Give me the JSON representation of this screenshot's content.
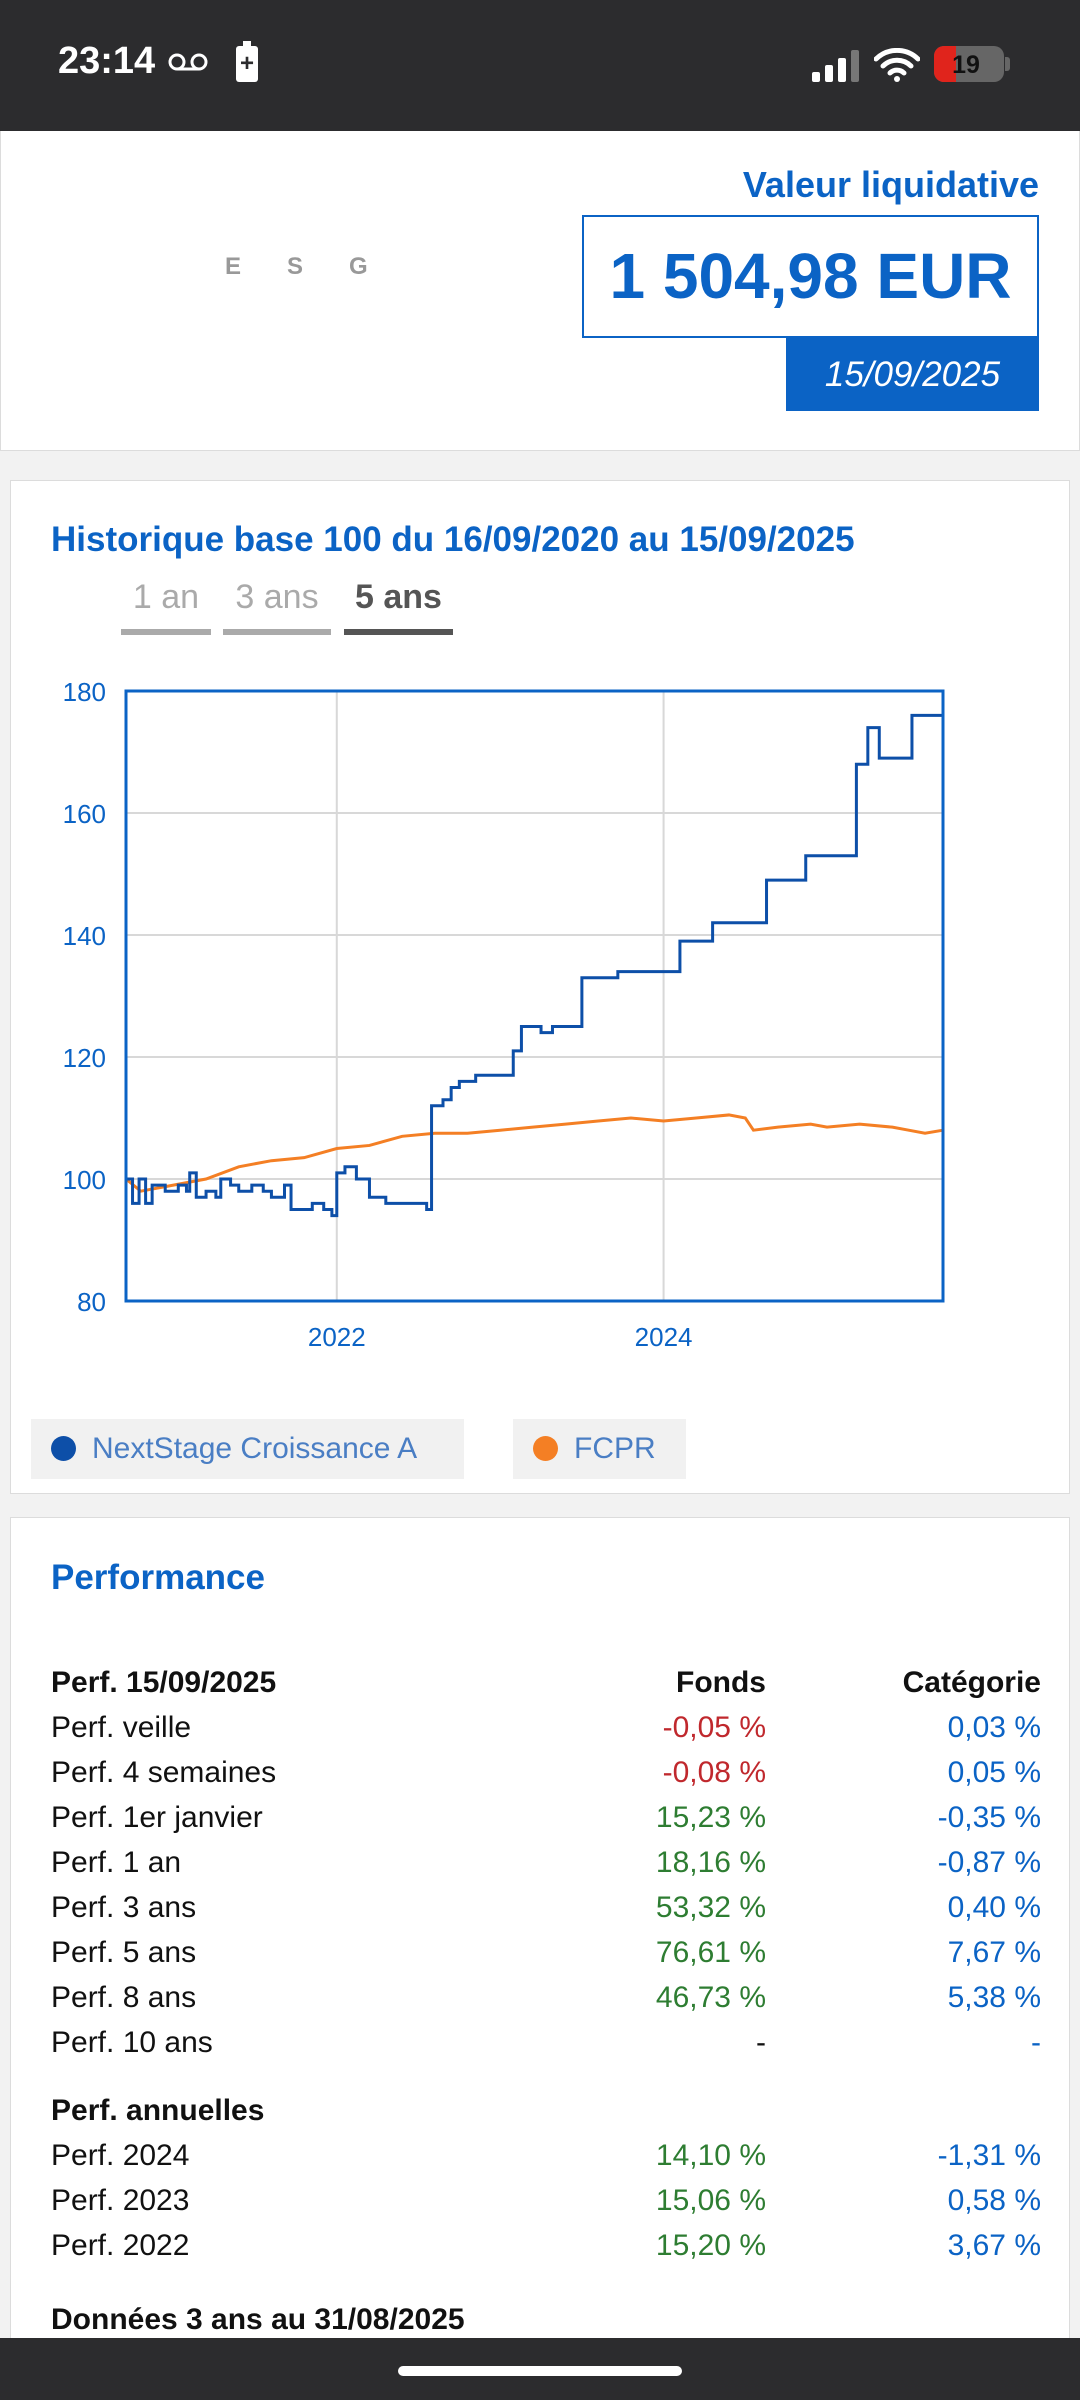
{
  "status_bar": {
    "time": "23:14",
    "battery": "19"
  },
  "esg_letters": [
    "E",
    "S",
    "G"
  ],
  "nav": {
    "label": "Valeur liquidative",
    "value": "1 504,98 EUR",
    "date": "15/09/2025"
  },
  "history": {
    "title": "Historique base 100 du 16/09/2020 au 15/09/2025",
    "tabs": [
      "1 an",
      "3 ans",
      "5 ans"
    ],
    "active_tab": "5 ans",
    "legend": [
      {
        "name": "NextStage Croissance A",
        "color": "#0d4fa8"
      },
      {
        "name": "FCPR",
        "color": "#f47f24"
      }
    ]
  },
  "chart_data": {
    "type": "line",
    "title": "Historique base 100 du 16/09/2020 au 15/09/2025",
    "xlabel": "",
    "ylabel": "",
    "xlim": [
      2020.71,
      2025.71
    ],
    "ylim": [
      80,
      180
    ],
    "x_ticks": [
      "2022",
      "2024"
    ],
    "x_tick_values": [
      2022,
      2024
    ],
    "y_ticks": [
      80,
      100,
      120,
      140,
      160,
      180
    ],
    "grid": true,
    "legend_position": "bottom",
    "series": [
      {
        "name": "NextStage Croissance A",
        "color": "#0d4fa8",
        "step": true,
        "points": [
          [
            2020.71,
            100
          ],
          [
            2020.75,
            96
          ],
          [
            2020.79,
            100
          ],
          [
            2020.83,
            96
          ],
          [
            2020.87,
            99
          ],
          [
            2020.95,
            98
          ],
          [
            2021.03,
            99
          ],
          [
            2021.08,
            98
          ],
          [
            2021.1,
            101
          ],
          [
            2021.14,
            97
          ],
          [
            2021.2,
            98
          ],
          [
            2021.26,
            97
          ],
          [
            2021.29,
            100
          ],
          [
            2021.35,
            99
          ],
          [
            2021.4,
            98
          ],
          [
            2021.48,
            99
          ],
          [
            2021.55,
            98
          ],
          [
            2021.6,
            97
          ],
          [
            2021.68,
            99
          ],
          [
            2021.72,
            95
          ],
          [
            2021.78,
            95
          ],
          [
            2021.85,
            96
          ],
          [
            2021.92,
            95
          ],
          [
            2021.97,
            94
          ],
          [
            2022.0,
            101
          ],
          [
            2022.05,
            102
          ],
          [
            2022.12,
            100
          ],
          [
            2022.2,
            97
          ],
          [
            2022.3,
            96
          ],
          [
            2022.45,
            96
          ],
          [
            2022.55,
            95
          ],
          [
            2022.58,
            112
          ],
          [
            2022.65,
            113
          ],
          [
            2022.7,
            115
          ],
          [
            2022.75,
            116
          ],
          [
            2022.85,
            117
          ],
          [
            2023.0,
            117
          ],
          [
            2023.08,
            121
          ],
          [
            2023.13,
            125
          ],
          [
            2023.25,
            124
          ],
          [
            2023.32,
            125
          ],
          [
            2023.45,
            125
          ],
          [
            2023.5,
            133
          ],
          [
            2023.72,
            134
          ],
          [
            2023.92,
            134
          ],
          [
            2024.1,
            139
          ],
          [
            2024.3,
            142
          ],
          [
            2024.6,
            142
          ],
          [
            2024.63,
            149
          ],
          [
            2024.85,
            149
          ],
          [
            2024.87,
            153
          ],
          [
            2025.15,
            153
          ],
          [
            2025.18,
            168
          ],
          [
            2025.25,
            174
          ],
          [
            2025.32,
            169
          ],
          [
            2025.5,
            169
          ],
          [
            2025.52,
            176
          ],
          [
            2025.71,
            176
          ]
        ]
      },
      {
        "name": "FCPR",
        "color": "#f47f24",
        "step": false,
        "points": [
          [
            2020.71,
            100
          ],
          [
            2020.8,
            98
          ],
          [
            2021.0,
            99
          ],
          [
            2021.2,
            100
          ],
          [
            2021.4,
            102
          ],
          [
            2021.6,
            103
          ],
          [
            2021.8,
            103.5
          ],
          [
            2022.0,
            105
          ],
          [
            2022.2,
            105.5
          ],
          [
            2022.4,
            107
          ],
          [
            2022.6,
            107.5
          ],
          [
            2022.8,
            107.5
          ],
          [
            2023.0,
            108
          ],
          [
            2023.2,
            108.5
          ],
          [
            2023.4,
            109
          ],
          [
            2023.6,
            109.5
          ],
          [
            2023.8,
            110
          ],
          [
            2024.0,
            109.5
          ],
          [
            2024.2,
            110
          ],
          [
            2024.4,
            110.5
          ],
          [
            2024.5,
            110
          ],
          [
            2024.55,
            108
          ],
          [
            2024.7,
            108.5
          ],
          [
            2024.9,
            109
          ],
          [
            2025.0,
            108.5
          ],
          [
            2025.2,
            109
          ],
          [
            2025.4,
            108.5
          ],
          [
            2025.5,
            108
          ],
          [
            2025.6,
            107.5
          ],
          [
            2025.71,
            108
          ]
        ]
      }
    ]
  },
  "performance": {
    "title": "Performance",
    "header": {
      "label": "Perf. 15/09/2025",
      "fonds": "Fonds",
      "cat": "Catégorie"
    },
    "rows": [
      {
        "label": "Perf. veille",
        "fonds": "-0,05 %",
        "cat": "0,03 %"
      },
      {
        "label": "Perf. 4 semaines",
        "fonds": "-0,08 %",
        "cat": "0,05 %"
      },
      {
        "label": "Perf. 1er janvier",
        "fonds": "15,23 %",
        "cat": "-0,35 %"
      },
      {
        "label": "Perf. 1 an",
        "fonds": "18,16 %",
        "cat": "-0,87 %"
      },
      {
        "label": "Perf. 3 ans",
        "fonds": "53,32 %",
        "cat": "0,40 %"
      },
      {
        "label": "Perf. 5 ans",
        "fonds": "76,61 %",
        "cat": "7,67 %"
      },
      {
        "label": "Perf. 8 ans",
        "fonds": "46,73 %",
        "cat": "5,38 %"
      },
      {
        "label": "Perf. 10 ans",
        "fonds": "-",
        "cat": "-"
      }
    ],
    "annual_header": "Perf. annuelles",
    "annual_rows": [
      {
        "label": "Perf. 2024",
        "fonds": "14,10 %",
        "cat": "-1,31 %"
      },
      {
        "label": "Perf. 2023",
        "fonds": "15,06 %",
        "cat": "0,58 %"
      },
      {
        "label": "Perf. 2022",
        "fonds": "15,20 %",
        "cat": "3,67 %"
      }
    ],
    "next_section": "Données 3 ans au 31/08/2025"
  }
}
